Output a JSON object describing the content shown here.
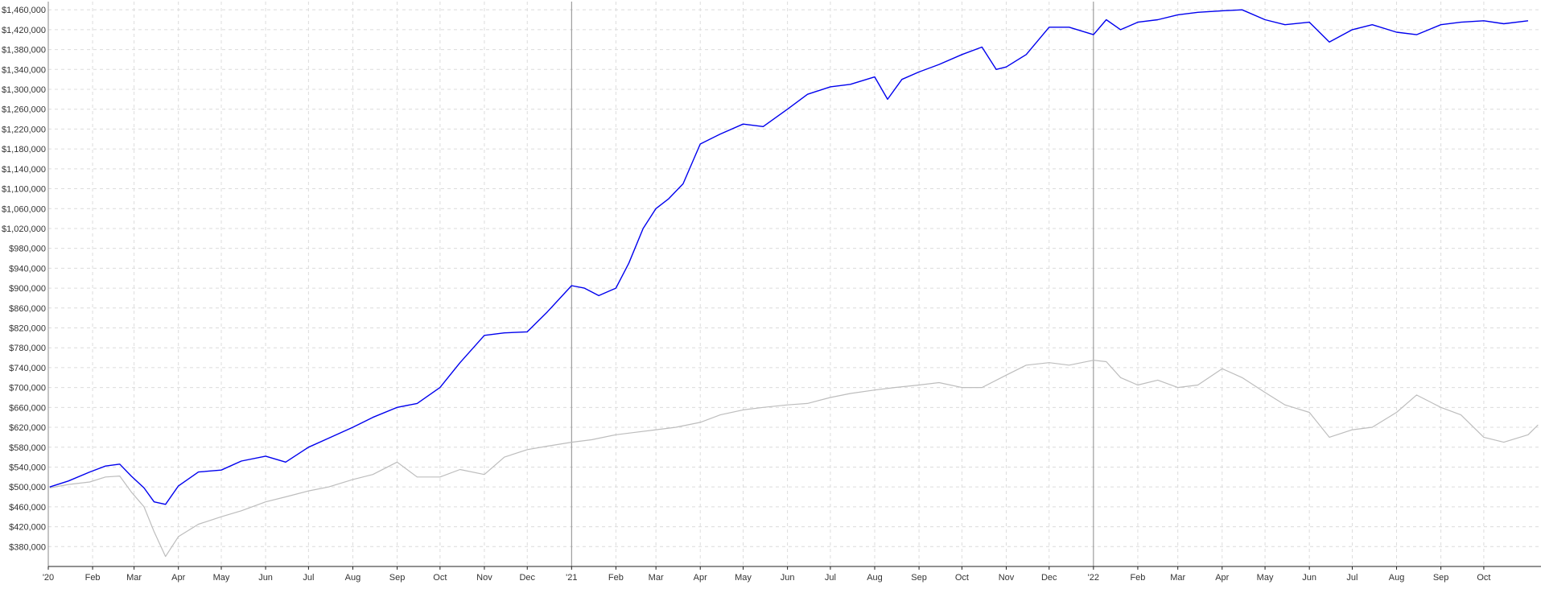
{
  "chart_data": {
    "type": "line",
    "title": "",
    "xlabel": "",
    "ylabel": "",
    "ylim": [
      340000,
      1470000
    ],
    "xlim": [
      "2020-01-01",
      "2022-11-10"
    ],
    "grid": true,
    "y_ticks": [
      {
        "value": 1460000,
        "label": "$1,460,000"
      },
      {
        "value": 1420000,
        "label": "$1,420,000"
      },
      {
        "value": 1380000,
        "label": "$1,380,000"
      },
      {
        "value": 1340000,
        "label": "$1,340,000"
      },
      {
        "value": 1300000,
        "label": "$1,300,000"
      },
      {
        "value": 1260000,
        "label": "$1,260,000"
      },
      {
        "value": 1220000,
        "label": "$1,220,000"
      },
      {
        "value": 1180000,
        "label": "$1,180,000"
      },
      {
        "value": 1140000,
        "label": "$1,140,000"
      },
      {
        "value": 1100000,
        "label": "$1,100,000"
      },
      {
        "value": 1060000,
        "label": "$1,060,000"
      },
      {
        "value": 1020000,
        "label": "$1,020,000"
      },
      {
        "value": 980000,
        "label": "$980,000"
      },
      {
        "value": 940000,
        "label": "$940,000"
      },
      {
        "value": 900000,
        "label": "$900,000"
      },
      {
        "value": 860000,
        "label": "$860,000"
      },
      {
        "value": 820000,
        "label": "$820,000"
      },
      {
        "value": 780000,
        "label": "$780,000"
      },
      {
        "value": 740000,
        "label": "$740,000"
      },
      {
        "value": 700000,
        "label": "$700,000"
      },
      {
        "value": 660000,
        "label": "$660,000"
      },
      {
        "value": 620000,
        "label": "$620,000"
      },
      {
        "value": 580000,
        "label": "$580,000"
      },
      {
        "value": 540000,
        "label": "$540,000"
      },
      {
        "value": 500000,
        "label": "$500,000"
      },
      {
        "value": 460000,
        "label": "$460,000"
      },
      {
        "value": 420000,
        "label": "$420,000"
      },
      {
        "value": 380000,
        "label": "$380,000"
      }
    ],
    "x_ticks": [
      {
        "date": "2020-01-01",
        "label": "'20",
        "year_start": true
      },
      {
        "date": "2020-02-01",
        "label": "Feb"
      },
      {
        "date": "2020-03-01",
        "label": "Mar"
      },
      {
        "date": "2020-04-01",
        "label": "Apr"
      },
      {
        "date": "2020-05-01",
        "label": "May"
      },
      {
        "date": "2020-06-01",
        "label": "Jun"
      },
      {
        "date": "2020-07-01",
        "label": "Jul"
      },
      {
        "date": "2020-08-01",
        "label": "Aug"
      },
      {
        "date": "2020-09-01",
        "label": "Sep"
      },
      {
        "date": "2020-10-01",
        "label": "Oct"
      },
      {
        "date": "2020-11-01",
        "label": "Nov"
      },
      {
        "date": "2020-12-01",
        "label": "Dec"
      },
      {
        "date": "2021-01-01",
        "label": "'21",
        "year_start": true
      },
      {
        "date": "2021-02-01",
        "label": "Feb"
      },
      {
        "date": "2021-03-01",
        "label": "Mar"
      },
      {
        "date": "2021-04-01",
        "label": "Apr"
      },
      {
        "date": "2021-05-01",
        "label": "May"
      },
      {
        "date": "2021-06-01",
        "label": "Jun"
      },
      {
        "date": "2021-07-01",
        "label": "Jul"
      },
      {
        "date": "2021-08-01",
        "label": "Aug"
      },
      {
        "date": "2021-09-01",
        "label": "Sep"
      },
      {
        "date": "2021-10-01",
        "label": "Oct"
      },
      {
        "date": "2021-11-01",
        "label": "Nov"
      },
      {
        "date": "2021-12-01",
        "label": "Dec"
      },
      {
        "date": "2022-01-01",
        "label": "'22",
        "year_start": true
      },
      {
        "date": "2022-02-01",
        "label": "Feb"
      },
      {
        "date": "2022-03-01",
        "label": "Mar"
      },
      {
        "date": "2022-04-01",
        "label": "Apr"
      },
      {
        "date": "2022-05-01",
        "label": "May"
      },
      {
        "date": "2022-06-01",
        "label": "Jun"
      },
      {
        "date": "2022-07-01",
        "label": "Jul"
      },
      {
        "date": "2022-08-01",
        "label": "Aug"
      },
      {
        "date": "2022-09-01",
        "label": "Sep"
      },
      {
        "date": "2022-10-01",
        "label": "Oct"
      }
    ],
    "series": [
      {
        "color": "#0000ee",
        "points": [
          [
            "2020-01-02",
            500000
          ],
          [
            "2020-01-15",
            512000
          ],
          [
            "2020-01-30",
            530000
          ],
          [
            "2020-02-10",
            542000
          ],
          [
            "2020-02-20",
            546000
          ],
          [
            "2020-02-28",
            522000
          ],
          [
            "2020-03-08",
            498000
          ],
          [
            "2020-03-15",
            470000
          ],
          [
            "2020-03-23",
            465000
          ],
          [
            "2020-04-01",
            502000
          ],
          [
            "2020-04-15",
            530000
          ],
          [
            "2020-05-01",
            534000
          ],
          [
            "2020-05-15",
            552000
          ],
          [
            "2020-06-01",
            562000
          ],
          [
            "2020-06-15",
            550000
          ],
          [
            "2020-07-01",
            580000
          ],
          [
            "2020-07-15",
            598000
          ],
          [
            "2020-08-01",
            620000
          ],
          [
            "2020-08-15",
            640000
          ],
          [
            "2020-09-01",
            660000
          ],
          [
            "2020-09-15",
            668000
          ],
          [
            "2020-10-01",
            700000
          ],
          [
            "2020-10-15",
            750000
          ],
          [
            "2020-11-01",
            805000
          ],
          [
            "2020-11-15",
            810000
          ],
          [
            "2020-12-01",
            812000
          ],
          [
            "2020-12-15",
            852000
          ],
          [
            "2021-01-01",
            905000
          ],
          [
            "2021-01-10",
            900000
          ],
          [
            "2021-01-20",
            885000
          ],
          [
            "2021-02-01",
            900000
          ],
          [
            "2021-02-10",
            950000
          ],
          [
            "2021-02-20",
            1020000
          ],
          [
            "2021-03-01",
            1060000
          ],
          [
            "2021-03-10",
            1080000
          ],
          [
            "2021-03-20",
            1110000
          ],
          [
            "2021-04-01",
            1190000
          ],
          [
            "2021-04-15",
            1210000
          ],
          [
            "2021-05-01",
            1230000
          ],
          [
            "2021-05-15",
            1225000
          ],
          [
            "2021-06-01",
            1260000
          ],
          [
            "2021-06-15",
            1290000
          ],
          [
            "2021-07-01",
            1305000
          ],
          [
            "2021-07-15",
            1310000
          ],
          [
            "2021-08-01",
            1325000
          ],
          [
            "2021-08-10",
            1280000
          ],
          [
            "2021-08-20",
            1320000
          ],
          [
            "2021-09-01",
            1335000
          ],
          [
            "2021-09-15",
            1350000
          ],
          [
            "2021-10-01",
            1370000
          ],
          [
            "2021-10-15",
            1385000
          ],
          [
            "2021-10-25",
            1340000
          ],
          [
            "2021-11-01",
            1345000
          ],
          [
            "2021-11-15",
            1370000
          ],
          [
            "2021-12-01",
            1425000
          ],
          [
            "2021-12-15",
            1425000
          ],
          [
            "2022-01-01",
            1410000
          ],
          [
            "2022-01-10",
            1440000
          ],
          [
            "2022-01-20",
            1420000
          ],
          [
            "2022-02-01",
            1435000
          ],
          [
            "2022-02-15",
            1440000
          ],
          [
            "2022-03-01",
            1450000
          ],
          [
            "2022-03-15",
            1455000
          ],
          [
            "2022-04-01",
            1458000
          ],
          [
            "2022-04-15",
            1460000
          ],
          [
            "2022-05-01",
            1440000
          ],
          [
            "2022-05-15",
            1430000
          ],
          [
            "2022-06-01",
            1435000
          ],
          [
            "2022-06-15",
            1395000
          ],
          [
            "2022-07-01",
            1420000
          ],
          [
            "2022-07-15",
            1430000
          ],
          [
            "2022-08-01",
            1415000
          ],
          [
            "2022-08-15",
            1410000
          ],
          [
            "2022-09-01",
            1430000
          ],
          [
            "2022-09-15",
            1435000
          ],
          [
            "2022-10-01",
            1438000
          ],
          [
            "2022-10-15",
            1432000
          ],
          [
            "2022-11-01",
            1438000
          ]
        ]
      },
      {
        "color": "#bdbdbd",
        "points": [
          [
            "2020-01-02",
            498000
          ],
          [
            "2020-01-15",
            505000
          ],
          [
            "2020-01-30",
            510000
          ],
          [
            "2020-02-10",
            520000
          ],
          [
            "2020-02-20",
            522000
          ],
          [
            "2020-02-28",
            490000
          ],
          [
            "2020-03-08",
            460000
          ],
          [
            "2020-03-15",
            410000
          ],
          [
            "2020-03-23",
            360000
          ],
          [
            "2020-04-01",
            400000
          ],
          [
            "2020-04-15",
            425000
          ],
          [
            "2020-05-01",
            440000
          ],
          [
            "2020-05-15",
            452000
          ],
          [
            "2020-06-01",
            470000
          ],
          [
            "2020-06-15",
            480000
          ],
          [
            "2020-07-01",
            492000
          ],
          [
            "2020-07-15",
            500000
          ],
          [
            "2020-08-01",
            515000
          ],
          [
            "2020-08-15",
            525000
          ],
          [
            "2020-09-01",
            550000
          ],
          [
            "2020-09-15",
            520000
          ],
          [
            "2020-10-01",
            520000
          ],
          [
            "2020-10-15",
            535000
          ],
          [
            "2020-11-01",
            525000
          ],
          [
            "2020-11-15",
            560000
          ],
          [
            "2020-12-01",
            575000
          ],
          [
            "2020-12-15",
            582000
          ],
          [
            "2021-01-01",
            590000
          ],
          [
            "2021-01-15",
            595000
          ],
          [
            "2021-02-01",
            605000
          ],
          [
            "2021-02-15",
            610000
          ],
          [
            "2021-03-01",
            615000
          ],
          [
            "2021-03-15",
            620000
          ],
          [
            "2021-04-01",
            630000
          ],
          [
            "2021-04-15",
            645000
          ],
          [
            "2021-05-01",
            655000
          ],
          [
            "2021-05-15",
            660000
          ],
          [
            "2021-06-01",
            665000
          ],
          [
            "2021-06-15",
            668000
          ],
          [
            "2021-07-01",
            680000
          ],
          [
            "2021-07-15",
            688000
          ],
          [
            "2021-08-01",
            695000
          ],
          [
            "2021-08-15",
            700000
          ],
          [
            "2021-09-01",
            705000
          ],
          [
            "2021-09-15",
            710000
          ],
          [
            "2021-10-01",
            700000
          ],
          [
            "2021-10-15",
            700000
          ],
          [
            "2021-11-01",
            725000
          ],
          [
            "2021-11-15",
            745000
          ],
          [
            "2021-12-01",
            750000
          ],
          [
            "2021-12-15",
            745000
          ],
          [
            "2022-01-01",
            755000
          ],
          [
            "2022-01-10",
            752000
          ],
          [
            "2022-01-20",
            720000
          ],
          [
            "2022-02-01",
            705000
          ],
          [
            "2022-02-15",
            715000
          ],
          [
            "2022-03-01",
            700000
          ],
          [
            "2022-03-15",
            705000
          ],
          [
            "2022-04-01",
            738000
          ],
          [
            "2022-04-15",
            720000
          ],
          [
            "2022-05-01",
            690000
          ],
          [
            "2022-05-15",
            665000
          ],
          [
            "2022-06-01",
            650000
          ],
          [
            "2022-06-15",
            600000
          ],
          [
            "2022-07-01",
            615000
          ],
          [
            "2022-07-15",
            620000
          ],
          [
            "2022-08-01",
            650000
          ],
          [
            "2022-08-15",
            685000
          ],
          [
            "2022-09-01",
            660000
          ],
          [
            "2022-09-15",
            645000
          ],
          [
            "2022-10-01",
            600000
          ],
          [
            "2022-10-15",
            590000
          ],
          [
            "2022-11-01",
            605000
          ],
          [
            "2022-11-08",
            625000
          ]
        ]
      }
    ]
  }
}
